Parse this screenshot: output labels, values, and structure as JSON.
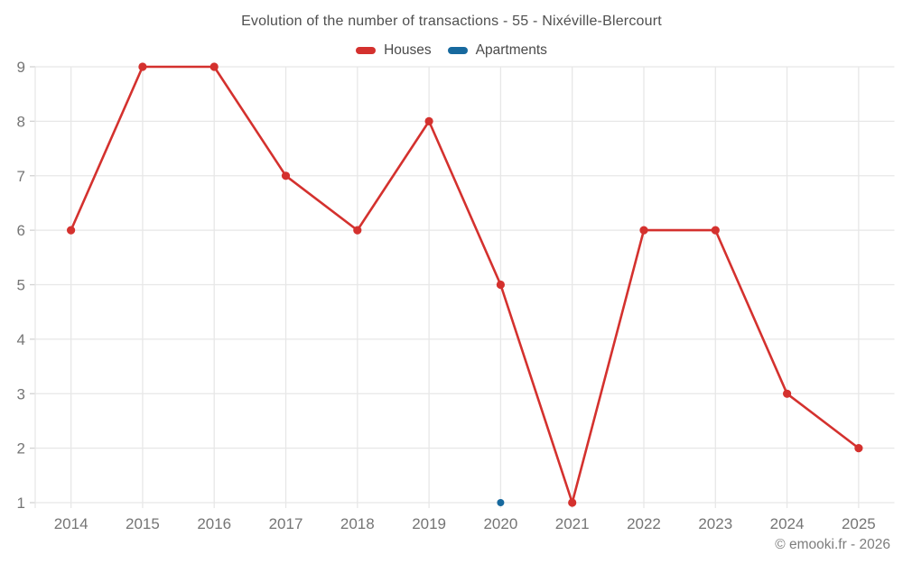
{
  "footer": {
    "copyright": "© emooki.fr - 2026"
  },
  "chart_data": {
    "type": "line",
    "title": "Evolution of the number of transactions - 55 - Nixéville-Blercourt",
    "categories": [
      "2014",
      "2015",
      "2016",
      "2017",
      "2018",
      "2019",
      "2020",
      "2021",
      "2022",
      "2023",
      "2024",
      "2025"
    ],
    "series": [
      {
        "name": "Houses",
        "color": "#d4312e",
        "values": [
          6,
          9,
          9,
          7,
          6,
          8,
          5,
          1,
          6,
          6,
          3,
          2
        ]
      },
      {
        "name": "Apartments",
        "color": "#17699e",
        "values": [
          null,
          null,
          null,
          null,
          null,
          null,
          1,
          null,
          null,
          null,
          null,
          null
        ]
      }
    ],
    "ylim": [
      1,
      9
    ],
    "ytick_step": 1,
    "xlabel": "",
    "ylabel": "",
    "grid": true,
    "legend_position": "top"
  }
}
